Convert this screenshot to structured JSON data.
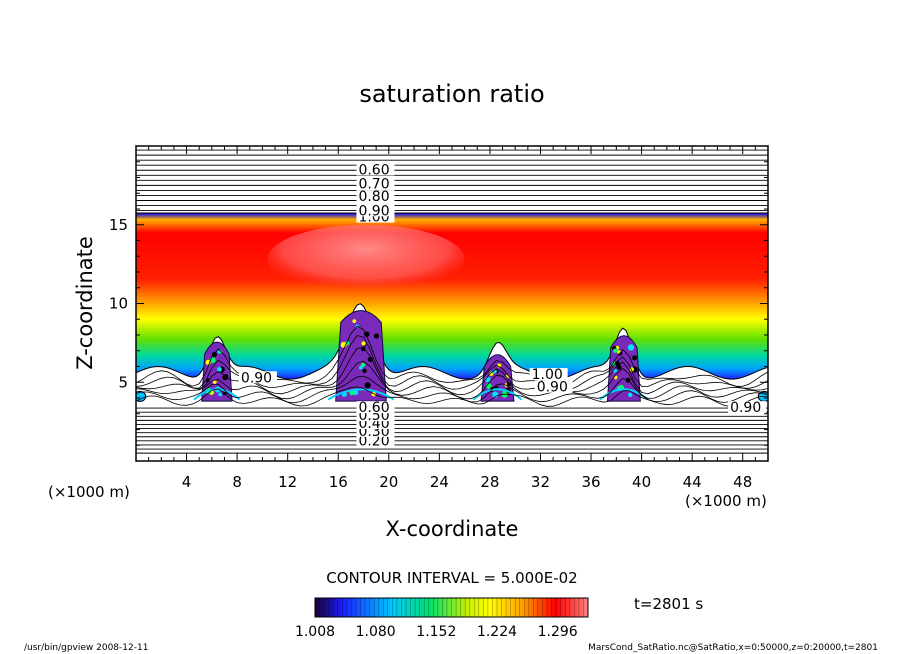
{
  "chart_data": {
    "type": "heatmap",
    "title": "saturation ratio",
    "xlabel": "X-coordinate",
    "ylabel": "Z-coordinate",
    "x_unit": "(×1000 m)",
    "y_unit": "(×1000 m)",
    "xlim": [
      0,
      50
    ],
    "ylim": [
      0,
      20
    ],
    "x_ticks": [
      4,
      8,
      12,
      16,
      20,
      24,
      28,
      32,
      36,
      40,
      44,
      48
    ],
    "y_ticks": [
      5,
      10,
      15
    ],
    "colorbar_ticks": [
      "1.008",
      "1.080",
      "1.152",
      "1.224",
      "1.296"
    ],
    "colorbar_range": [
      1.008,
      1.332
    ],
    "contour_interval_text": "CONTOUR INTERVAL = 5.000E-02",
    "time_text": "t=2801 s",
    "upper_contour_labels": [
      {
        "x": 17.6,
        "z": 15.2,
        "text": "1.00"
      },
      {
        "x": 17.6,
        "z": 15.6,
        "text": "0.90"
      },
      {
        "x": 17.6,
        "z": 16.5,
        "text": "0.80"
      },
      {
        "x": 17.6,
        "z": 17.3,
        "text": "0.70"
      },
      {
        "x": 17.6,
        "z": 18.2,
        "text": "0.60"
      }
    ],
    "lower_contour_labels": [
      {
        "x": 17.6,
        "z": 1.0,
        "text": "0.20"
      },
      {
        "x": 17.6,
        "z": 1.6,
        "text": "0.30"
      },
      {
        "x": 17.6,
        "z": 2.1,
        "text": "0.40"
      },
      {
        "x": 17.6,
        "z": 2.6,
        "text": "0.50"
      },
      {
        "x": 17.6,
        "z": 3.1,
        "text": "0.60"
      }
    ],
    "mid_contour_labels": [
      {
        "x": 8.3,
        "z": 5.0,
        "text": "0.90"
      },
      {
        "x": 31.3,
        "z": 5.2,
        "text": "1.00"
      },
      {
        "x": 31.7,
        "z": 4.4,
        "text": "0.90"
      },
      {
        "x": 47.0,
        "z": 3.1,
        "text": "0.90"
      }
    ],
    "cloud_towers_x": [
      6.4,
      17.8,
      28.6,
      38.6
    ],
    "cloud_tower_tops_z": [
      8.0,
      10.0,
      7.2,
      8.4
    ],
    "colors": {
      "colormap": [
        "#1a0030",
        "#1c1cff",
        "#00c8ff",
        "#00e070",
        "#c8f000",
        "#ffff00",
        "#ffa000",
        "#ff0000",
        "#ff8080"
      ],
      "cloud": "#7a2ab8"
    }
  },
  "footer": {
    "left": "/usr/bin/gpview   2008-12-11",
    "right": "MarsCond_SatRatio.nc@SatRatio,x=0:50000,z=0:20000,t=2801"
  }
}
